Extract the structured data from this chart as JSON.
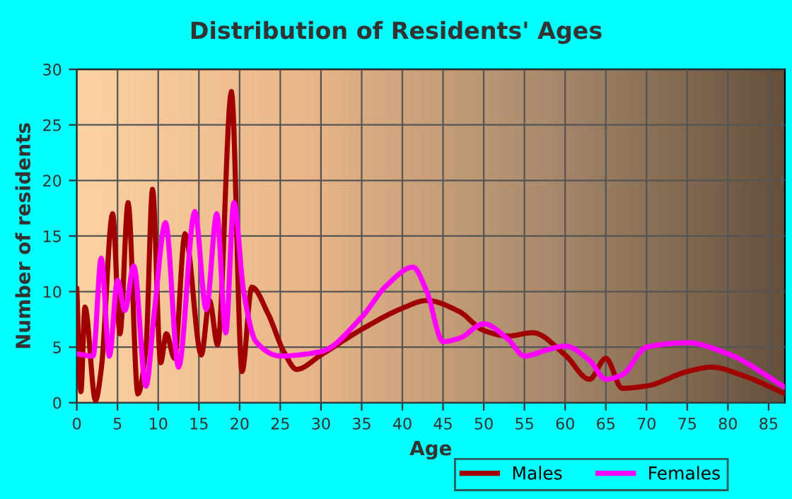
{
  "chart_data": {
    "type": "line",
    "title": "Distribution of Residents' Ages",
    "xlabel": "Age",
    "ylabel": "Number of residents",
    "xlim": [
      0,
      87
    ],
    "xticks": [
      0,
      5,
      10,
      15,
      20,
      25,
      30,
      35,
      40,
      45,
      50,
      55,
      60,
      65,
      70,
      75,
      80,
      85
    ],
    "ylim": [
      0,
      30
    ],
    "yticks": [
      0,
      5,
      10,
      15,
      20,
      25,
      30
    ],
    "grid": true,
    "legend": "bottom",
    "series": [
      {
        "name": "Males",
        "color": "#a00000",
        "x": [
          0,
          0.5,
          1,
          2.3,
          3,
          4.4,
          5.3,
          6.3,
          7.5,
          8.5,
          9.3,
          10.3,
          11,
          12,
          13.3,
          15.3,
          16.3,
          17.3,
          19,
          20.3,
          21.5,
          23.5,
          25.5,
          27,
          30,
          35,
          40,
          43,
          47,
          50,
          53,
          56,
          60,
          63,
          65,
          67,
          70,
          75,
          78,
          82,
          87
        ],
        "values": [
          10.3,
          1,
          8.6,
          0.2,
          3,
          17,
          6.2,
          18,
          0.8,
          5,
          19.2,
          3.6,
          6.2,
          4,
          15.2,
          4.3,
          9.2,
          5.2,
          28,
          2.8,
          10.4,
          8,
          4.5,
          3,
          4.3,
          6.6,
          8.5,
          9.2,
          8.2,
          6.5,
          6,
          6.3,
          4.3,
          2.1,
          4,
          1.3,
          1.5,
          2.8,
          3.2,
          2.4,
          0.8
        ]
      },
      {
        "name": "Females",
        "color": "#ff00ff",
        "x": [
          0,
          2,
          3,
          4,
          5,
          5.9,
          7,
          8.5,
          9.5,
          10.9,
          12.5,
          14.5,
          15.9,
          17.2,
          18.3,
          19.3,
          20.5,
          22,
          25,
          30,
          35,
          38,
          41.3,
          43,
          45,
          47,
          50,
          53,
          55,
          58,
          60,
          63,
          65,
          67,
          70,
          75,
          80,
          87
        ],
        "values": [
          4.4,
          4.2,
          13,
          4.2,
          11,
          8.3,
          12.3,
          1.5,
          8,
          16.2,
          3.2,
          17.2,
          8.4,
          17,
          6.3,
          18,
          10,
          5.5,
          4.2,
          4.6,
          7.7,
          10.5,
          12.2,
          10,
          5.5,
          5.8,
          7.1,
          5.7,
          4.2,
          4.8,
          5.1,
          3.8,
          2.1,
          2.5,
          5,
          5.4,
          4.4,
          1.4
        ]
      }
    ]
  }
}
